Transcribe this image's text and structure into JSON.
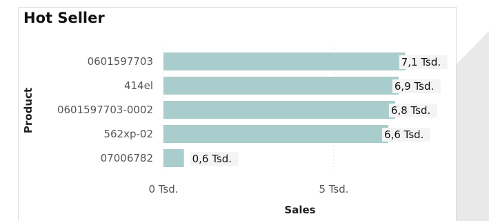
{
  "colors": {
    "bar": "#a9cccc",
    "label_bg": "#f4f4f4",
    "tick_text": "#555555",
    "axis_title": "#222222",
    "grid": "#c8c8c8",
    "side_panel": "#e9e9e9"
  },
  "chart_data": {
    "type": "bar",
    "orientation": "horizontal",
    "title": "Hot Seller",
    "xlabel": "Sales",
    "ylabel": "Product",
    "categories": [
      "0601597703",
      "414el",
      "0601597703-0002",
      "562xp-02",
      "07006782"
    ],
    "values": [
      7.1,
      6.9,
      6.8,
      6.6,
      0.6
    ],
    "data_labels": [
      "7,1 Tsd.",
      "6,9 Tsd.",
      "6,8 Tsd.",
      "6,6 Tsd.",
      "0,6 Tsd."
    ],
    "x_ticks": [
      {
        "value": 0,
        "label": "0 Tsd."
      },
      {
        "value": 5,
        "label": "5 Tsd."
      }
    ],
    "xlim": [
      0,
      7.6
    ],
    "grid": true
  }
}
